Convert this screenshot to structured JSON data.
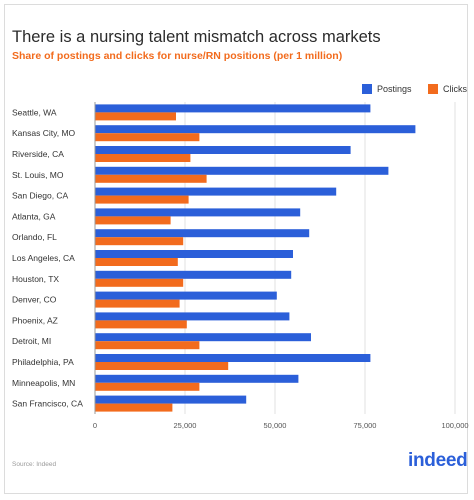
{
  "chart_data": {
    "type": "bar",
    "orientation": "horizontal",
    "title": "There is a nursing talent mismatch across markets",
    "subtitle": "Share of postings and clicks for nurse/RN positions (per 1 million)",
    "source": "Source: Indeed",
    "logo": "indeed",
    "categories": [
      "Seattle, WA",
      "Kansas City, MO",
      "Riverside, CA",
      "St. Louis, MO",
      "San Diego, CA",
      "Atlanta, GA",
      "Orlando, FL",
      "Los Angeles, CA",
      "Houston, TX",
      "Denver, CO",
      "Phoenix, AZ",
      "Detroit, MI",
      "Philadelphia, PA",
      "Minneapolis, MN",
      "San Francisco, CA"
    ],
    "series": [
      {
        "name": "Postings",
        "color": "#2b5fd9",
        "values": [
          76500,
          89000,
          71000,
          81500,
          67000,
          57000,
          59500,
          55000,
          54500,
          50500,
          54000,
          60000,
          76500,
          56500,
          42000
        ]
      },
      {
        "name": "Clicks",
        "color": "#f26b1d",
        "values": [
          22500,
          29000,
          26500,
          31000,
          26000,
          21000,
          24500,
          23000,
          24500,
          23500,
          25500,
          29000,
          37000,
          29000,
          21500
        ]
      }
    ],
    "xlim": [
      0,
      100000
    ],
    "xticks": [
      0,
      25000,
      50000,
      75000,
      100000
    ],
    "xtick_labels": [
      "0",
      "25,000",
      "50,000",
      "75,000",
      "100,000"
    ],
    "grid": true,
    "legend_position": "top-right"
  }
}
